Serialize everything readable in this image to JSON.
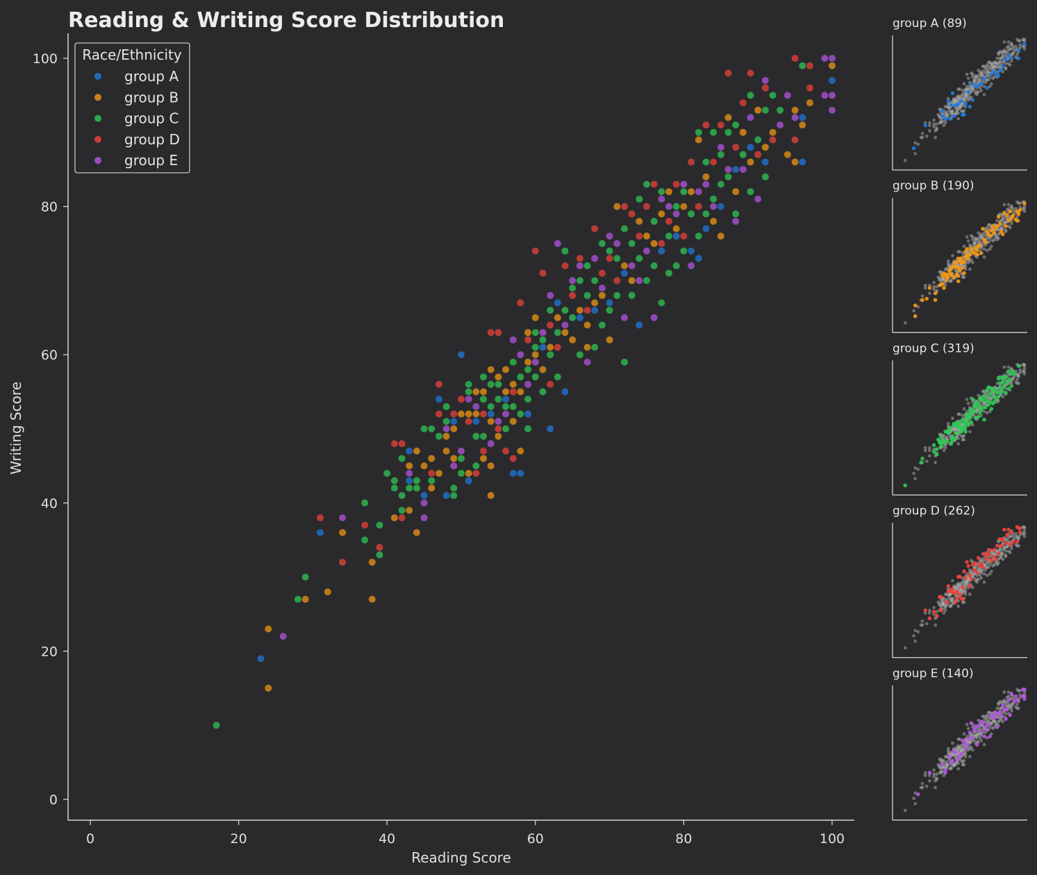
{
  "chart_data": {
    "type": "scatter",
    "title": "Reading & Writing Score Distribution",
    "xlabel": "Reading Score",
    "ylabel": "Writing Score",
    "xlim": [
      -3,
      103
    ],
    "ylim": [
      -3,
      103
    ],
    "xticks": [
      0,
      20,
      40,
      60,
      80,
      100
    ],
    "yticks": [
      0,
      20,
      40,
      60,
      80,
      100
    ],
    "grid": false,
    "legend": {
      "title": "Race/Ethnicity",
      "placement": "top-left"
    },
    "series": [
      {
        "name": "group A",
        "color": "#1f7ae0",
        "count_label": "group A (89)"
      },
      {
        "name": "group B",
        "color": "#f59a12",
        "count_label": "group B (190)"
      },
      {
        "name": "group C",
        "color": "#2fcc55",
        "count_label": "group C (319)"
      },
      {
        "name": "group D",
        "color": "#f2433a",
        "count_label": "group D (262)"
      },
      {
        "name": "group E",
        "color": "#b656e6",
        "count_label": "group E (140)"
      }
    ],
    "points": [
      [
        "C",
        17,
        10
      ],
      [
        "A",
        23,
        19
      ],
      [
        "B",
        24,
        23
      ],
      [
        "B",
        24,
        15
      ],
      [
        "E",
        26,
        22
      ],
      [
        "C",
        28,
        27
      ],
      [
        "B",
        29,
        27
      ],
      [
        "C",
        29,
        30
      ],
      [
        "A",
        31,
        36
      ],
      [
        "D",
        31,
        38
      ],
      [
        "B",
        32,
        28
      ],
      [
        "B",
        34,
        36
      ],
      [
        "E",
        34,
        38
      ],
      [
        "D",
        34,
        32
      ],
      [
        "D",
        37,
        37
      ],
      [
        "C",
        37,
        40
      ],
      [
        "C",
        37,
        35
      ],
      [
        "B",
        38,
        27
      ],
      [
        "B",
        38,
        32
      ],
      [
        "C",
        39,
        33
      ],
      [
        "D",
        39,
        34
      ],
      [
        "C",
        39,
        37
      ],
      [
        "C",
        40,
        44
      ],
      [
        "B",
        41,
        38
      ],
      [
        "D",
        41,
        48
      ],
      [
        "C",
        41,
        43
      ],
      [
        "C",
        41,
        42
      ],
      [
        "C",
        42,
        41
      ],
      [
        "D",
        42,
        48
      ],
      [
        "C",
        42,
        39
      ],
      [
        "D",
        42,
        38
      ],
      [
        "C",
        42,
        46
      ],
      [
        "A",
        43,
        43
      ],
      [
        "B",
        43,
        45
      ],
      [
        "B",
        43,
        39
      ],
      [
        "E",
        43,
        44
      ],
      [
        "C",
        43,
        42
      ],
      [
        "A",
        43,
        47
      ],
      [
        "B",
        44,
        47
      ],
      [
        "B",
        44,
        36
      ],
      [
        "C",
        44,
        43
      ],
      [
        "C",
        44,
        42
      ],
      [
        "E",
        45,
        40
      ],
      [
        "A",
        45,
        41
      ],
      [
        "E",
        45,
        38
      ],
      [
        "B",
        45,
        45
      ],
      [
        "C",
        45,
        50
      ],
      [
        "B",
        46,
        46
      ],
      [
        "C",
        46,
        50
      ],
      [
        "B",
        46,
        42
      ],
      [
        "D",
        46,
        44
      ],
      [
        "C",
        46,
        43
      ],
      [
        "D",
        47,
        56
      ],
      [
        "A",
        47,
        54
      ],
      [
        "B",
        47,
        44
      ],
      [
        "C",
        47,
        49
      ],
      [
        "D",
        47,
        52
      ],
      [
        "B",
        48,
        49
      ],
      [
        "C",
        48,
        51
      ],
      [
        "E",
        48,
        50
      ],
      [
        "C",
        48,
        53
      ],
      [
        "A",
        48,
        41
      ],
      [
        "B",
        48,
        47
      ],
      [
        "A",
        49,
        51
      ],
      [
        "B",
        49,
        46
      ],
      [
        "C",
        49,
        42
      ],
      [
        "C",
        49,
        41
      ],
      [
        "D",
        49,
        52
      ],
      [
        "B",
        49,
        50
      ],
      [
        "E",
        49,
        45
      ],
      [
        "A",
        50,
        60
      ],
      [
        "B",
        50,
        52
      ],
      [
        "D",
        50,
        54
      ],
      [
        "C",
        50,
        46
      ],
      [
        "C",
        50,
        44
      ],
      [
        "E",
        50,
        47
      ],
      [
        "B",
        51,
        52
      ],
      [
        "C",
        51,
        55
      ],
      [
        "A",
        51,
        43
      ],
      [
        "B",
        51,
        44
      ],
      [
        "C",
        51,
        56
      ],
      [
        "D",
        51,
        51
      ],
      [
        "E",
        51,
        54
      ],
      [
        "B",
        52,
        55
      ],
      [
        "C",
        52,
        49
      ],
      [
        "B",
        52,
        52
      ],
      [
        "C",
        52,
        45
      ],
      [
        "A",
        52,
        51
      ],
      [
        "D",
        52,
        44
      ],
      [
        "E",
        52,
        53
      ],
      [
        "B",
        53,
        55
      ],
      [
        "C",
        53,
        57
      ],
      [
        "D",
        53,
        52
      ],
      [
        "C",
        53,
        49
      ],
      [
        "B",
        53,
        46
      ],
      [
        "C",
        53,
        54
      ],
      [
        "D",
        53,
        47
      ],
      [
        "B",
        54,
        58
      ],
      [
        "B",
        54,
        51
      ],
      [
        "C",
        54,
        56
      ],
      [
        "D",
        54,
        63
      ],
      [
        "C",
        54,
        53
      ],
      [
        "B",
        54,
        45
      ],
      [
        "B",
        54,
        41
      ],
      [
        "E",
        54,
        48
      ],
      [
        "A",
        54,
        52
      ],
      [
        "D",
        55,
        63
      ],
      [
        "B",
        55,
        57
      ],
      [
        "C",
        55,
        54
      ],
      [
        "B",
        55,
        49
      ],
      [
        "C",
        55,
        56
      ],
      [
        "E",
        55,
        51
      ],
      [
        "D",
        55,
        50
      ],
      [
        "B",
        56,
        58
      ],
      [
        "C",
        56,
        53
      ],
      [
        "B",
        56,
        55
      ],
      [
        "A",
        56,
        54
      ],
      [
        "D",
        56,
        47
      ],
      [
        "C",
        56,
        50
      ],
      [
        "E",
        56,
        52
      ],
      [
        "C",
        57,
        59
      ],
      [
        "B",
        57,
        56
      ],
      [
        "D",
        57,
        55
      ],
      [
        "A",
        57,
        44
      ],
      [
        "B",
        57,
        51
      ],
      [
        "C",
        57,
        53
      ],
      [
        "E",
        57,
        62
      ],
      [
        "D",
        57,
        46
      ],
      [
        "B",
        58,
        55
      ],
      [
        "C",
        58,
        57
      ],
      [
        "D",
        58,
        67
      ],
      [
        "A",
        58,
        44
      ],
      [
        "B",
        58,
        47
      ],
      [
        "C",
        58,
        52
      ],
      [
        "E",
        58,
        60
      ],
      [
        "C",
        59,
        58
      ],
      [
        "B",
        59,
        59
      ],
      [
        "D",
        59,
        62
      ],
      [
        "C",
        59,
        54
      ],
      [
        "B",
        59,
        63
      ],
      [
        "C",
        59,
        50
      ],
      [
        "A",
        59,
        52
      ],
      [
        "E",
        59,
        56
      ],
      [
        "C",
        60,
        61
      ],
      [
        "B",
        60,
        65
      ],
      [
        "D",
        60,
        74
      ],
      [
        "C",
        60,
        57
      ],
      [
        "B",
        60,
        60
      ],
      [
        "C",
        60,
        63
      ],
      [
        "E",
        60,
        59
      ],
      [
        "A",
        61,
        61
      ],
      [
        "C",
        61,
        62
      ],
      [
        "B",
        61,
        58
      ],
      [
        "D",
        61,
        71
      ],
      [
        "C",
        61,
        55
      ],
      [
        "E",
        61,
        63
      ],
      [
        "D",
        62,
        64
      ],
      [
        "C",
        62,
        66
      ],
      [
        "B",
        62,
        61
      ],
      [
        "A",
        62,
        50
      ],
      [
        "E",
        62,
        68
      ],
      [
        "C",
        62,
        60
      ],
      [
        "D",
        62,
        56
      ],
      [
        "C",
        63,
        63
      ],
      [
        "B",
        63,
        65
      ],
      [
        "E",
        63,
        75
      ],
      [
        "D",
        63,
        61
      ],
      [
        "C",
        63,
        57
      ],
      [
        "A",
        63,
        67
      ],
      [
        "C",
        64,
        66
      ],
      [
        "B",
        64,
        63
      ],
      [
        "D",
        64,
        72
      ],
      [
        "C",
        64,
        74
      ],
      [
        "E",
        64,
        64
      ],
      [
        "A",
        64,
        55
      ],
      [
        "C",
        65,
        69
      ],
      [
        "B",
        65,
        62
      ],
      [
        "D",
        65,
        68
      ],
      [
        "C",
        65,
        65
      ],
      [
        "E",
        65,
        70
      ],
      [
        "C",
        66,
        70
      ],
      [
        "B",
        66,
        66
      ],
      [
        "D",
        66,
        73
      ],
      [
        "C",
        66,
        60
      ],
      [
        "A",
        66,
        65
      ],
      [
        "E",
        66,
        72
      ],
      [
        "C",
        67,
        72
      ],
      [
        "B",
        67,
        64
      ],
      [
        "D",
        67,
        66
      ],
      [
        "C",
        67,
        68
      ],
      [
        "B",
        67,
        61
      ],
      [
        "E",
        67,
        59
      ],
      [
        "C",
        68,
        70
      ],
      [
        "D",
        68,
        77
      ],
      [
        "B",
        68,
        67
      ],
      [
        "C",
        68,
        61
      ],
      [
        "A",
        68,
        66
      ],
      [
        "E",
        68,
        73
      ],
      [
        "C",
        69,
        75
      ],
      [
        "B",
        69,
        68
      ],
      [
        "D",
        69,
        71
      ],
      [
        "C",
        69,
        64
      ],
      [
        "E",
        69,
        69
      ],
      [
        "C",
        70,
        74
      ],
      [
        "B",
        70,
        62
      ],
      [
        "D",
        70,
        73
      ],
      [
        "C",
        70,
        66
      ],
      [
        "A",
        70,
        67
      ],
      [
        "E",
        70,
        76
      ],
      [
        "C",
        71,
        73
      ],
      [
        "B",
        71,
        80
      ],
      [
        "D",
        71,
        70
      ],
      [
        "C",
        71,
        68
      ],
      [
        "E",
        71,
        75
      ],
      [
        "C",
        72,
        77
      ],
      [
        "B",
        72,
        72
      ],
      [
        "D",
        72,
        80
      ],
      [
        "C",
        72,
        59
      ],
      [
        "A",
        72,
        71
      ],
      [
        "E",
        72,
        65
      ],
      [
        "C",
        73,
        75
      ],
      [
        "B",
        73,
        70
      ],
      [
        "D",
        73,
        79
      ],
      [
        "C",
        73,
        68
      ],
      [
        "E",
        73,
        72
      ],
      [
        "C",
        74,
        73
      ],
      [
        "B",
        74,
        78
      ],
      [
        "D",
        74,
        76
      ],
      [
        "C",
        74,
        81
      ],
      [
        "A",
        74,
        64
      ],
      [
        "E",
        74,
        70
      ],
      [
        "C",
        75,
        83
      ],
      [
        "B",
        75,
        76
      ],
      [
        "D",
        75,
        80
      ],
      [
        "C",
        75,
        70
      ],
      [
        "E",
        75,
        74
      ],
      [
        "C",
        76,
        78
      ],
      [
        "B",
        76,
        75
      ],
      [
        "D",
        76,
        83
      ],
      [
        "C",
        76,
        72
      ],
      [
        "E",
        76,
        65
      ],
      [
        "C",
        77,
        82
      ],
      [
        "B",
        77,
        79
      ],
      [
        "D",
        77,
        75
      ],
      [
        "C",
        77,
        67
      ],
      [
        "A",
        77,
        74
      ],
      [
        "E",
        77,
        81
      ],
      [
        "C",
        78,
        76
      ],
      [
        "B",
        78,
        82
      ],
      [
        "D",
        78,
        78
      ],
      [
        "C",
        78,
        71
      ],
      [
        "E",
        78,
        80
      ],
      [
        "C",
        79,
        80
      ],
      [
        "B",
        79,
        77
      ],
      [
        "D",
        79,
        83
      ],
      [
        "C",
        79,
        72
      ],
      [
        "A",
        79,
        76
      ],
      [
        "E",
        79,
        79
      ],
      [
        "C",
        80,
        82
      ],
      [
        "B",
        80,
        80
      ],
      [
        "D",
        80,
        76
      ],
      [
        "C",
        80,
        74
      ],
      [
        "E",
        80,
        83
      ],
      [
        "C",
        81,
        79
      ],
      [
        "B",
        81,
        82
      ],
      [
        "D",
        81,
        86
      ],
      [
        "A",
        81,
        74
      ],
      [
        "E",
        81,
        72
      ],
      [
        "C",
        82,
        90
      ],
      [
        "B",
        82,
        89
      ],
      [
        "D",
        82,
        80
      ],
      [
        "C",
        82,
        76
      ],
      [
        "A",
        82,
        73
      ],
      [
        "E",
        82,
        82
      ],
      [
        "C",
        83,
        86
      ],
      [
        "B",
        83,
        84
      ],
      [
        "D",
        83,
        91
      ],
      [
        "C",
        83,
        79
      ],
      [
        "A",
        83,
        77
      ],
      [
        "E",
        83,
        83
      ],
      [
        "C",
        84,
        90
      ],
      [
        "B",
        84,
        78
      ],
      [
        "D",
        84,
        86
      ],
      [
        "C",
        84,
        81
      ],
      [
        "E",
        84,
        80
      ],
      [
        "C",
        85,
        87
      ],
      [
        "B",
        85,
        76
      ],
      [
        "D",
        85,
        91
      ],
      [
        "C",
        85,
        83
      ],
      [
        "A",
        85,
        80
      ],
      [
        "E",
        85,
        88
      ],
      [
        "C",
        86,
        90
      ],
      [
        "B",
        86,
        92
      ],
      [
        "D",
        86,
        98
      ],
      [
        "C",
        86,
        84
      ],
      [
        "E",
        86,
        85
      ],
      [
        "C",
        87,
        91
      ],
      [
        "B",
        87,
        82
      ],
      [
        "D",
        87,
        88
      ],
      [
        "C",
        87,
        79
      ],
      [
        "A",
        87,
        85
      ],
      [
        "E",
        87,
        78
      ],
      [
        "C",
        88,
        87
      ],
      [
        "B",
        88,
        90
      ],
      [
        "D",
        88,
        94
      ],
      [
        "E",
        88,
        85
      ],
      [
        "C",
        89,
        95
      ],
      [
        "B",
        89,
        86
      ],
      [
        "D",
        89,
        98
      ],
      [
        "C",
        89,
        82
      ],
      [
        "A",
        89,
        88
      ],
      [
        "E",
        89,
        92
      ],
      [
        "C",
        90,
        89
      ],
      [
        "B",
        90,
        93
      ],
      [
        "D",
        90,
        87
      ],
      [
        "E",
        90,
        81
      ],
      [
        "C",
        91,
        93
      ],
      [
        "B",
        91,
        88
      ],
      [
        "D",
        91,
        96
      ],
      [
        "C",
        91,
        84
      ],
      [
        "A",
        91,
        86
      ],
      [
        "E",
        91,
        97
      ],
      [
        "C",
        92,
        95
      ],
      [
        "B",
        92,
        90
      ],
      [
        "D",
        92,
        89
      ],
      [
        "C",
        93,
        93
      ],
      [
        "E",
        93,
        91
      ],
      [
        "B",
        94,
        87
      ],
      [
        "E",
        94,
        95
      ],
      [
        "D",
        95,
        100
      ],
      [
        "B",
        95,
        86
      ],
      [
        "B",
        95,
        93
      ],
      [
        "E",
        95,
        92
      ],
      [
        "D",
        95,
        89
      ],
      [
        "C",
        96,
        99
      ],
      [
        "A",
        96,
        86
      ],
      [
        "A",
        96,
        92
      ],
      [
        "B",
        96,
        91
      ],
      [
        "D",
        97,
        96
      ],
      [
        "B",
        97,
        94
      ],
      [
        "D",
        97,
        99
      ],
      [
        "E",
        99,
        100
      ],
      [
        "E",
        99,
        95
      ],
      [
        "E",
        100,
        100
      ],
      [
        "B",
        100,
        99
      ],
      [
        "A",
        100,
        97
      ],
      [
        "E",
        100,
        95
      ],
      [
        "E",
        100,
        93
      ]
    ]
  }
}
